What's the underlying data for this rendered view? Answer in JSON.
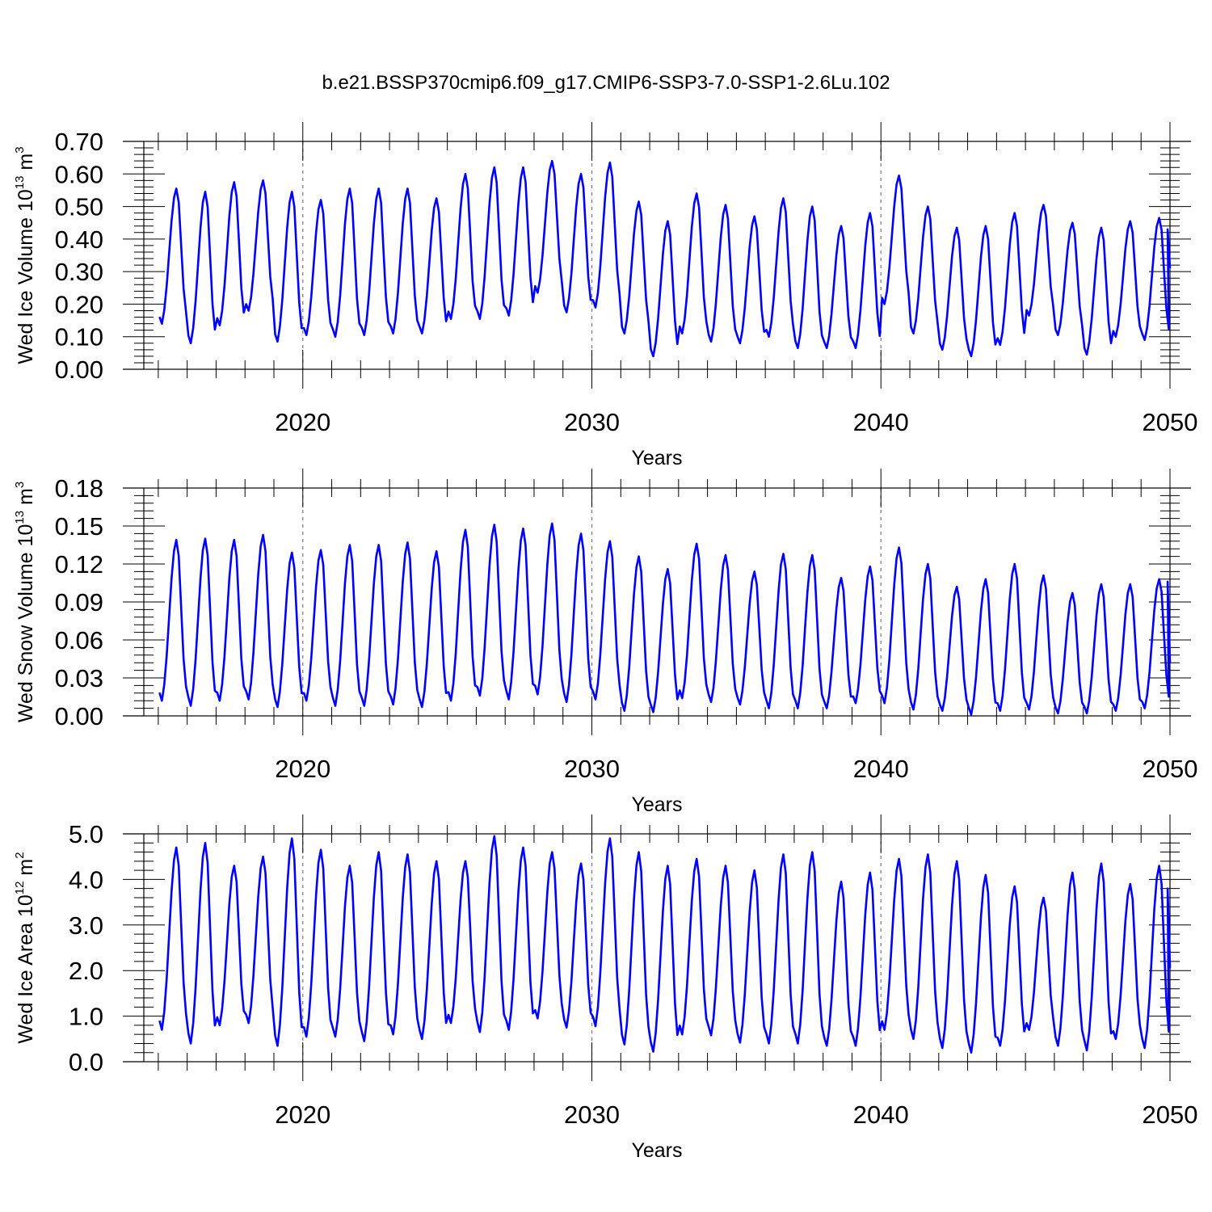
{
  "figure": {
    "title": "b.e21.BSSP370cmip6.f09_g17.CMIP6-SSP3-7.0-SSP1-2.6Lu.102"
  },
  "style": {
    "line_color": "#0000ff",
    "grid_color": "#777777"
  },
  "chart_data": [
    {
      "type": "line",
      "title": "",
      "ylabel": {
        "main": "Wed Ice Volume 10",
        "exp": "13",
        "unit": " m",
        "unit_exp": "3"
      },
      "xlabel": "Years",
      "xlim": [
        2014.5,
        2050.0
      ],
      "ylim": [
        0.0,
        0.7
      ],
      "x_ticks": [
        2020,
        2030,
        2040,
        2050
      ],
      "x_tick_labels": [
        "2020",
        "2030",
        "2040",
        "2050"
      ],
      "y_ticks": [
        0.0,
        0.1,
        0.2,
        0.3,
        0.4,
        0.5,
        0.6,
        0.7
      ],
      "y_tick_labels": [
        "0.00",
        "0.10",
        "0.20",
        "0.30",
        "0.40",
        "0.50",
        "0.60",
        "0.70"
      ],
      "grid": "dashed vertical lines at 2020, 2030, 2040",
      "start_year": 2015,
      "start_month": 1,
      "months_per_year": 12,
      "years": [
        2015,
        2016,
        2017,
        2018,
        2019,
        2020,
        2021,
        2022,
        2023,
        2024,
        2025,
        2026,
        2027,
        2028,
        2029,
        2030,
        2031,
        2032,
        2033,
        2034,
        2035,
        2036,
        2037,
        2038,
        2039,
        2040,
        2041,
        2042,
        2043,
        2044,
        2045,
        2046,
        2047,
        2048,
        2049
      ],
      "annual_min": [
        0.14,
        0.08,
        0.135,
        0.18,
        0.085,
        0.105,
        0.1,
        0.105,
        0.11,
        0.11,
        0.155,
        0.155,
        0.165,
        0.235,
        0.175,
        0.19,
        0.11,
        0.04,
        0.11,
        0.085,
        0.08,
        0.1,
        0.065,
        0.065,
        0.065,
        0.2,
        0.11,
        0.06,
        0.04,
        0.075,
        0.165,
        0.105,
        0.045,
        0.1,
        0.09
      ],
      "annual_max": [
        0.555,
        0.545,
        0.575,
        0.58,
        0.545,
        0.52,
        0.555,
        0.555,
        0.555,
        0.525,
        0.6,
        0.62,
        0.62,
        0.64,
        0.6,
        0.635,
        0.515,
        0.455,
        0.54,
        0.505,
        0.47,
        0.525,
        0.5,
        0.44,
        0.48,
        0.595,
        0.5,
        0.435,
        0.44,
        0.48,
        0.505,
        0.45,
        0.435,
        0.455,
        0.465
      ],
      "last_value": {
        "x": 2050.0,
        "y": 0.31,
        "preceding_peak": 0.43
      },
      "seasonal_cycle": {
        "min_month": 3,
        "max_month": 9
      }
    },
    {
      "type": "line",
      "title": "",
      "ylabel": {
        "main": "Wed Snow Volume 10",
        "exp": "13",
        "unit": " m",
        "unit_exp": "3"
      },
      "xlabel": "Years",
      "xlim": [
        2014.5,
        2050.0
      ],
      "ylim": [
        0.0,
        0.18
      ],
      "x_ticks": [
        2020,
        2030,
        2040,
        2050
      ],
      "x_tick_labels": [
        "2020",
        "2030",
        "2040",
        "2050"
      ],
      "y_ticks": [
        0.0,
        0.03,
        0.06,
        0.09,
        0.12,
        0.15,
        0.18
      ],
      "y_tick_labels": [
        "0.00",
        "0.03",
        "0.06",
        "0.09",
        "0.12",
        "0.15",
        "0.18"
      ],
      "grid": "dashed vertical lines at 2020, 2030, 2040",
      "start_year": 2015,
      "start_month": 1,
      "months_per_year": 12,
      "years": [
        2015,
        2016,
        2017,
        2018,
        2019,
        2020,
        2021,
        2022,
        2023,
        2024,
        2025,
        2026,
        2027,
        2028,
        2029,
        2030,
        2031,
        2032,
        2033,
        2034,
        2035,
        2036,
        2037,
        2038,
        2039,
        2040,
        2041,
        2042,
        2043,
        2044,
        2045,
        2046,
        2047,
        2048,
        2049
      ],
      "annual_min": [
        0.012,
        0.008,
        0.012,
        0.013,
        0.007,
        0.012,
        0.008,
        0.008,
        0.009,
        0.007,
        0.012,
        0.016,
        0.013,
        0.017,
        0.011,
        0.013,
        0.004,
        0.003,
        0.014,
        0.011,
        0.009,
        0.006,
        0.006,
        0.006,
        0.01,
        0.01,
        0.005,
        0.004,
        0.001,
        0.004,
        0.005,
        0.002,
        0.002,
        0.004,
        0.006
      ],
      "annual_max": [
        0.139,
        0.14,
        0.139,
        0.143,
        0.129,
        0.131,
        0.135,
        0.135,
        0.137,
        0.13,
        0.147,
        0.151,
        0.148,
        0.152,
        0.144,
        0.138,
        0.126,
        0.116,
        0.136,
        0.127,
        0.114,
        0.128,
        0.127,
        0.109,
        0.118,
        0.133,
        0.12,
        0.102,
        0.108,
        0.12,
        0.111,
        0.097,
        0.104,
        0.104,
        0.108
      ],
      "last_value": {
        "x": 2050.0,
        "y": 0.042,
        "preceding_peak": 0.106
      },
      "seasonal_cycle": {
        "min_month": 3,
        "max_month": 9
      }
    },
    {
      "type": "line",
      "title": "",
      "ylabel": {
        "main": "Wed Ice Area 10",
        "exp": "12",
        "unit": " m",
        "unit_exp": "2"
      },
      "xlabel": "Years",
      "xlim": [
        2014.5,
        2050.0
      ],
      "ylim": [
        0.0,
        5.0
      ],
      "x_ticks": [
        2020,
        2030,
        2040,
        2050
      ],
      "x_tick_labels": [
        "2020",
        "2030",
        "2040",
        "2050"
      ],
      "y_ticks": [
        0.0,
        1.0,
        2.0,
        3.0,
        4.0,
        5.0
      ],
      "y_tick_labels": [
        "0.0",
        "1.0",
        "2.0",
        "3.0",
        "4.0",
        "5.0"
      ],
      "grid": "dashed vertical lines at 2020, 2030, 2040",
      "start_year": 2015,
      "start_month": 1,
      "months_per_year": 12,
      "years": [
        2015,
        2016,
        2017,
        2018,
        2019,
        2020,
        2021,
        2022,
        2023,
        2024,
        2025,
        2026,
        2027,
        2028,
        2029,
        2030,
        2031,
        2032,
        2033,
        2034,
        2035,
        2036,
        2037,
        2038,
        2039,
        2040,
        2041,
        2042,
        2043,
        2044,
        2045,
        2046,
        2047,
        2048,
        2049
      ],
      "annual_min": [
        0.7,
        0.4,
        0.8,
        0.85,
        0.35,
        0.55,
        0.55,
        0.45,
        0.6,
        0.5,
        0.85,
        0.65,
        0.7,
        0.95,
        0.75,
        0.78,
        0.38,
        0.22,
        0.6,
        0.58,
        0.42,
        0.4,
        0.4,
        0.35,
        0.35,
        0.7,
        0.5,
        0.3,
        0.2,
        0.35,
        0.7,
        0.35,
        0.25,
        0.5,
        0.3
      ],
      "annual_max": [
        4.7,
        4.8,
        4.3,
        4.5,
        4.9,
        4.65,
        4.3,
        4.6,
        4.55,
        4.4,
        4.4,
        4.95,
        4.7,
        4.6,
        4.35,
        4.9,
        4.6,
        4.3,
        4.45,
        4.3,
        4.2,
        4.55,
        4.6,
        3.95,
        4.15,
        4.45,
        4.55,
        4.4,
        4.1,
        3.85,
        3.6,
        4.15,
        4.35,
        3.9,
        4.3
      ],
      "last_value": {
        "x": 2050.0,
        "y": 2.05,
        "preceding_peak": 3.8
      },
      "seasonal_cycle": {
        "min_month": 3,
        "max_month": 9
      }
    }
  ]
}
